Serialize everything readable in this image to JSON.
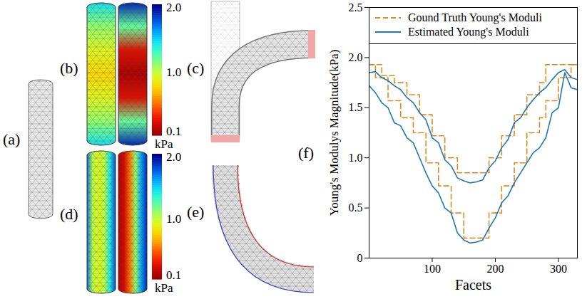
{
  "panels": [
    {
      "label": "(a)"
    },
    {
      "label": "(b)",
      "colorbar": {
        "range": [
          0.1,
          2.0
        ],
        "ticks": [
          {
            "value": 2,
            "label": "2.0"
          },
          {
            "value": 1,
            "label": "1.0"
          },
          {
            "value": 0.1,
            "label": "0.1"
          }
        ],
        "unit": "kPa"
      }
    },
    {
      "label": "(c)"
    },
    {
      "label": "(d)",
      "colorbar": {
        "range": [
          0.1,
          2.0
        ],
        "ticks": [
          {
            "value": 2,
            "label": "2.0"
          },
          {
            "value": 1,
            "label": "1.0"
          },
          {
            "value": 0.1,
            "label": "0.1"
          }
        ],
        "unit": "kPa"
      }
    },
    {
      "label": "(e)"
    },
    {
      "label": "(f)"
    }
  ],
  "chart_data": {
    "type": "line",
    "xlabel": "Facets",
    "ylabel": "Young's Modulys Magnitude(kPa)",
    "x": [
      0,
      10,
      20,
      30,
      40,
      50,
      60,
      70,
      80,
      90,
      100,
      110,
      120,
      130,
      140,
      150,
      160,
      170,
      180,
      190,
      200,
      210,
      220,
      230,
      240,
      250,
      260,
      270,
      280,
      290,
      300,
      310,
      320,
      330
    ],
    "xlim": [
      0,
      330
    ],
    "xticks": [
      100,
      200,
      300
    ],
    "ylim": [
      0,
      2.5
    ],
    "yticks": [
      0,
      0.5,
      {
        "value": 1,
        "label": "1.0"
      },
      1.5,
      {
        "value": 2,
        "label": "2.0"
      },
      2.5
    ],
    "legend": "top-left",
    "series": [
      {
        "name": "Gound Truth Young's Moduli",
        "color": "#e08a1e",
        "line_style": "dashed",
        "type": "step",
        "values": [
          1.93,
          1.93,
          1.82,
          1.82,
          1.75,
          1.75,
          1.63,
          1.63,
          1.43,
          1.43,
          1.22,
          1.22,
          1.0,
          1.0,
          0.85,
          0.85,
          0.85,
          0.85,
          0.85,
          1.0,
          1.0,
          1.22,
          1.22,
          1.43,
          1.43,
          1.63,
          1.63,
          1.75,
          1.93,
          1.93,
          1.93,
          1.93,
          1.93,
          1.93
        ]
      },
      {
        "name": "Gound Truth Young's Moduli",
        "color": "#e08a1e",
        "line_style": "dashed",
        "type": "step",
        "values": [
          1.93,
          1.8,
          1.8,
          1.57,
          1.57,
          1.4,
          1.4,
          1.25,
          1.25,
          0.95,
          0.95,
          0.72,
          0.72,
          0.45,
          0.45,
          0.2,
          0.2,
          0.2,
          0.2,
          0.45,
          0.45,
          0.72,
          0.72,
          0.95,
          0.95,
          1.25,
          1.25,
          1.4,
          1.57,
          1.57,
          1.8,
          1.8,
          1.93,
          1.93
        ]
      },
      {
        "name": "Estimated Young's Moduli",
        "color": "#1f77b4",
        "line_style": "solid",
        "type": "line",
        "values": [
          1.85,
          1.86,
          1.8,
          1.77,
          1.72,
          1.68,
          1.6,
          1.55,
          1.45,
          1.38,
          1.2,
          1.15,
          0.98,
          0.92,
          0.8,
          0.77,
          0.75,
          0.76,
          0.78,
          0.9,
          0.97,
          1.1,
          1.18,
          1.35,
          1.4,
          1.5,
          1.58,
          1.65,
          1.7,
          1.78,
          1.85,
          1.88,
          1.8,
          1.78
        ]
      },
      {
        "name": "Estimated Young's Moduli",
        "color": "#1f77b4",
        "line_style": "solid",
        "type": "line",
        "values": [
          1.72,
          1.65,
          1.55,
          1.5,
          1.35,
          1.32,
          1.2,
          1.15,
          1.0,
          0.85,
          0.72,
          0.65,
          0.5,
          0.45,
          0.25,
          0.18,
          0.15,
          0.16,
          0.18,
          0.3,
          0.4,
          0.55,
          0.62,
          0.75,
          0.85,
          0.95,
          1.05,
          1.1,
          1.2,
          1.45,
          1.5,
          1.85,
          1.7,
          1.68
        ]
      }
    ]
  }
}
